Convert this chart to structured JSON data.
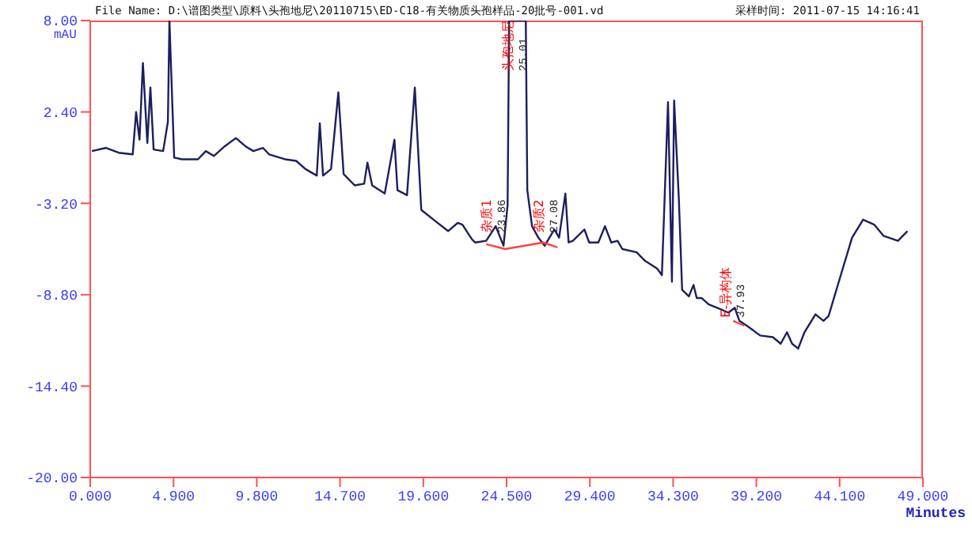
{
  "chart_data": {
    "type": "line",
    "title": "File Name: D:\\谱图类型\\原料\\头孢地尼\\20110715\\ED-C18-有关物质头孢样品-20批号-001.vd",
    "subtitle": "采样时间: 2011-07-15 14:16:41",
    "xlabel": "Minutes",
    "ylabel": "mAU",
    "xlim": [
      0,
      49
    ],
    "ylim": [
      -20,
      8
    ],
    "xticks": [
      {
        "value": 0,
        "label": "0.000"
      },
      {
        "value": 4.9,
        "label": "4.900"
      },
      {
        "value": 9.8,
        "label": "9.800"
      },
      {
        "value": 14.7,
        "label": "14.700"
      },
      {
        "value": 19.6,
        "label": "19.600"
      },
      {
        "value": 24.5,
        "label": "24.500"
      },
      {
        "value": 29.4,
        "label": "29.400"
      },
      {
        "value": 34.3,
        "label": "34.300"
      },
      {
        "value": 39.2,
        "label": "39.200"
      },
      {
        "value": 44.1,
        "label": "44.100"
      },
      {
        "value": 49,
        "label": "49.000"
      }
    ],
    "yticks": [
      {
        "value": 8,
        "label": "8.00"
      },
      {
        "value": 2.4,
        "label": "2.40"
      },
      {
        "value": -3.2,
        "label": "-3.20"
      },
      {
        "value": -8.8,
        "label": "-8.80"
      },
      {
        "value": -14.4,
        "label": "-14.40"
      },
      {
        "value": -20,
        "label": "-20.00"
      }
    ],
    "series": [
      {
        "color": "#1c1f5e",
        "x": [
          0.1,
          0.93,
          1.68,
          2.5,
          2.7,
          2.9,
          3.1,
          3.36,
          3.54,
          3.73,
          4.29,
          4.57,
          4.66,
          4.94,
          5.4,
          6.34,
          6.8,
          7.27,
          7.92,
          8.57,
          9.13,
          9.6,
          10.16,
          10.53,
          11.46,
          12.12,
          12.67,
          13.33,
          13.51,
          13.7,
          14.17,
          14.6,
          14.91,
          15.56,
          16.12,
          16.31,
          16.59,
          17.33,
          17.9,
          18.08,
          18.64,
          19.1,
          19.48,
          20.32,
          21.06,
          21.62,
          21.9,
          22.46,
          22.65,
          23.3,
          23.86,
          24.32,
          24.56,
          24.65,
          25.63,
          25.72,
          26.0,
          26.37,
          26.74,
          27.31,
          27.59,
          27.96,
          28.15,
          28.4,
          29.08,
          29.36,
          29.9,
          30.29,
          30.66,
          31.03,
          31.31,
          32.15,
          32.62,
          33.36,
          33.64,
          34.0,
          34.23,
          34.36,
          34.64,
          34.83,
          35.23,
          35.5,
          35.69,
          35.97,
          36.4,
          36.9,
          37.56,
          37.93,
          38.2,
          38.77,
          39.42,
          40.17,
          40.63,
          41.0,
          41.3,
          41.66,
          42.03,
          42.68,
          43.15,
          43.45,
          44.08,
          44.83,
          45.48,
          46.13,
          46.69,
          47.53,
          48.09
        ],
        "values": [
          0,
          0.2,
          -0.1,
          -0.2,
          2.4,
          0.7,
          5.4,
          0.5,
          3.9,
          0.1,
          0,
          1.8,
          8,
          -0.4,
          -0.5,
          -0.5,
          0,
          -0.3,
          0.3,
          0.8,
          0.3,
          0,
          0.2,
          -0.2,
          -0.5,
          -0.6,
          -1.1,
          -1.5,
          1.7,
          -1.5,
          -1.1,
          3.6,
          -1.4,
          -2.1,
          -2,
          -0.7,
          -2.1,
          -2.6,
          0.7,
          -2.4,
          -2.7,
          3.9,
          -3.6,
          -4.3,
          -4.9,
          -4.4,
          -4.5,
          -5.4,
          -5.6,
          -5.5,
          -4.6,
          -5.8,
          -3.3,
          8,
          8,
          -2.4,
          -4.6,
          -5.3,
          -5.8,
          -4.8,
          -5.3,
          -2.6,
          -5.6,
          -5.5,
          -4.8,
          -5.6,
          -5.6,
          -4.6,
          -5.6,
          -5.5,
          -6,
          -6.2,
          -6.7,
          -7.2,
          -7.6,
          3,
          -8,
          3.1,
          -3,
          -8.5,
          -8.9,
          -8.2,
          -9,
          -9,
          -9.4,
          -9.6,
          -9.9,
          -9.6,
          -10.4,
          -10.8,
          -11.3,
          -11.4,
          -11.8,
          -11.1,
          -11.8,
          -12.1,
          -11.1,
          -10,
          -10.4,
          -10.1,
          -7.9,
          -5.3,
          -4.2,
          -4.5,
          -5.2,
          -5.5,
          -4.9
        ]
      },
      {
        "color": "#ff4040",
        "x": [
          23.3,
          24.42,
          26.65,
          27.49,
          37.0,
          37.84,
          38.49
        ],
        "values": [
          -5.7,
          -6,
          -5.6,
          -5.9,
          null,
          -10.4,
          -10.7
        ]
      }
    ],
    "annotations": [
      {
        "text": "杂质1 23.86",
        "x": 23.86,
        "y": -5.0
      },
      {
        "text": "头孢地尼 25.01",
        "x": 25.1,
        "y": 4.9
      },
      {
        "text": "杂质2 27.08",
        "x": 26.9,
        "y": -5.0
      },
      {
        "text": "E-异构体 37.93",
        "x": 37.93,
        "y": -10.2
      }
    ]
  }
}
